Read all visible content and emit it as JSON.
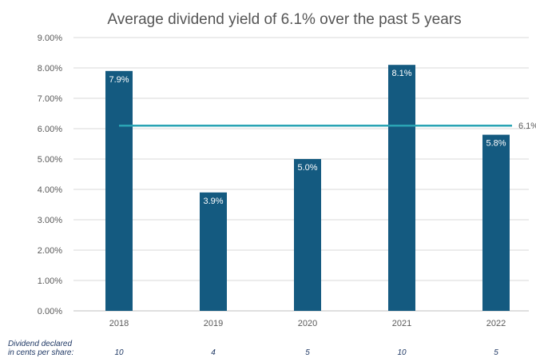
{
  "chart_data": {
    "type": "bar",
    "title": "Average dividend yield of 6.1% over the past 5 years",
    "categories": [
      "2018",
      "2019",
      "2020",
      "2021",
      "2022"
    ],
    "values": [
      7.9,
      3.9,
      5.0,
      8.1,
      5.8
    ],
    "value_labels": [
      "7.9%",
      "3.9%",
      "5.0%",
      "8.1%",
      "5.8%"
    ],
    "ylim": [
      0,
      9
    ],
    "yticks": [
      0,
      1,
      2,
      3,
      4,
      5,
      6,
      7,
      8,
      9
    ],
    "ytick_labels": [
      "0.00%",
      "1.00%",
      "2.00%",
      "3.00%",
      "4.00%",
      "5.00%",
      "6.00%",
      "7.00%",
      "8.00%",
      "9.00%"
    ],
    "average": {
      "value": 6.1,
      "label": "6.1%"
    },
    "grid": true,
    "legend": "none",
    "footnote": {
      "label_line1": "Dividend declared",
      "label_line2": "in cents per share:",
      "values": [
        "10",
        "4",
        "5",
        "10",
        "5"
      ]
    }
  },
  "colors": {
    "bar": "#145a80",
    "average_line": "#2aa4b4",
    "grid": "#d9d9d9"
  }
}
